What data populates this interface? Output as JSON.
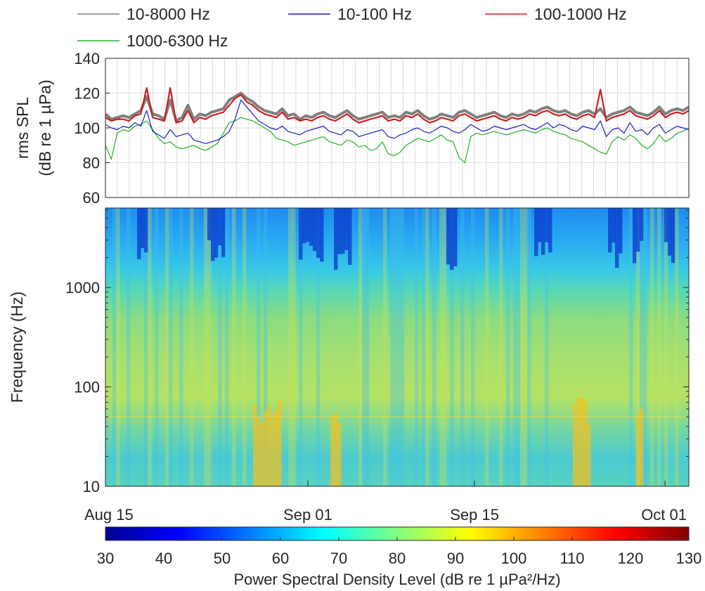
{
  "chart_data": [
    {
      "type": "line",
      "x_start": "Aug 15",
      "x_end": "Oct 03",
      "ylabel_line1": "rms SPL",
      "ylabel_line2": "(dB re 1 µPa)",
      "ylim": [
        60,
        140
      ],
      "yticks": [
        "60",
        "80",
        "100",
        "120",
        "140"
      ],
      "grid": true,
      "legend_position": "top",
      "series": [
        {
          "name": "10-8000 Hz",
          "color": "#808080",
          "values": [
            108,
            105,
            106,
            107,
            106,
            108,
            110,
            118,
            108,
            107,
            105,
            116,
            104,
            106,
            113,
            105,
            108,
            107,
            109,
            110,
            111,
            116,
            118,
            120,
            117,
            115,
            112,
            110,
            109,
            108,
            111,
            107,
            108,
            105,
            107,
            106,
            108,
            109,
            107,
            106,
            108,
            110,
            107,
            105,
            106,
            107,
            108,
            109,
            106,
            107,
            106,
            109,
            108,
            110,
            107,
            105,
            106,
            108,
            107,
            106,
            109,
            110,
            108,
            106,
            107,
            108,
            109,
            107,
            106,
            108,
            107,
            108,
            110,
            109,
            111,
            112,
            110,
            109,
            110,
            108,
            107,
            109,
            110,
            108,
            111,
            106,
            108,
            109,
            110,
            112,
            109,
            108,
            107,
            109,
            112,
            108,
            110,
            111,
            110,
            112
          ]
        },
        {
          "name": "10-100 Hz",
          "color": "#1f1fbf",
          "values": [
            102,
            100,
            99,
            101,
            100,
            103,
            101,
            110,
            98,
            96,
            94,
            99,
            95,
            96,
            97,
            93,
            92,
            91,
            92,
            93,
            95,
            98,
            105,
            116,
            112,
            108,
            104,
            102,
            100,
            99,
            101,
            98,
            97,
            96,
            98,
            99,
            100,
            101,
            98,
            97,
            96,
            99,
            98,
            95,
            96,
            97,
            98,
            99,
            95,
            94,
            96,
            97,
            99,
            100,
            98,
            97,
            99,
            101,
            100,
            98,
            97,
            99,
            102,
            100,
            98,
            99,
            101,
            100,
            99,
            100,
            101,
            102,
            100,
            99,
            101,
            103,
            100,
            102,
            101,
            99,
            98,
            101,
            100,
            99,
            104,
            95,
            99,
            100,
            97,
            103,
            98,
            99,
            96,
            100,
            102,
            97,
            99,
            101,
            100,
            99
          ]
        },
        {
          "name": "100-1000 Hz",
          "color": "#cc1f1f",
          "values": [
            106,
            104,
            105,
            105,
            104,
            107,
            108,
            123,
            106,
            105,
            104,
            123,
            103,
            104,
            110,
            103,
            106,
            105,
            107,
            108,
            109,
            113,
            117,
            119,
            115,
            113,
            110,
            108,
            107,
            106,
            109,
            105,
            106,
            104,
            105,
            104,
            106,
            107,
            105,
            104,
            106,
            108,
            105,
            103,
            104,
            105,
            106,
            107,
            104,
            105,
            104,
            107,
            106,
            108,
            105,
            103,
            104,
            106,
            105,
            104,
            107,
            108,
            106,
            104,
            105,
            106,
            107,
            105,
            104,
            106,
            105,
            106,
            108,
            107,
            109,
            110,
            108,
            107,
            108,
            106,
            105,
            107,
            108,
            106,
            122,
            104,
            106,
            107,
            108,
            110,
            107,
            106,
            105,
            107,
            110,
            106,
            108,
            109,
            108,
            110
          ]
        },
        {
          "name": "1000-6300 Hz",
          "color": "#22b022",
          "values": [
            90,
            82,
            97,
            99,
            98,
            101,
            102,
            104,
            99,
            94,
            91,
            92,
            89,
            88,
            89,
            90,
            88,
            87,
            89,
            91,
            97,
            103,
            104,
            106,
            105,
            104,
            102,
            100,
            98,
            94,
            93,
            92,
            90,
            91,
            92,
            93,
            94,
            95,
            92,
            91,
            90,
            93,
            92,
            89,
            90,
            87,
            88,
            92,
            85,
            84,
            86,
            90,
            92,
            94,
            93,
            92,
            94,
            96,
            93,
            92,
            83,
            80,
            95,
            97,
            96,
            97,
            98,
            97,
            96,
            97,
            98,
            99,
            98,
            97,
            99,
            100,
            98,
            97,
            96,
            94,
            93,
            92,
            90,
            88,
            86,
            85,
            92,
            95,
            93,
            96,
            94,
            90,
            88,
            91,
            96,
            92,
            94,
            97,
            98,
            100
          ]
        }
      ]
    },
    {
      "type": "heatmap",
      "ylabel": "Frequency (Hz)",
      "yscale": "log",
      "ylim": [
        10,
        6300
      ],
      "yticks": [
        "10",
        "100",
        "1000"
      ],
      "xticks": [
        "Aug 15",
        "Sep 01",
        "Sep 15",
        "Oct 01"
      ],
      "colormap": "jet",
      "clim": [
        30,
        130
      ],
      "colorbar_ticks": [
        "30",
        "40",
        "50",
        "60",
        "70",
        "80",
        "90",
        "100",
        "110",
        "120",
        "130"
      ],
      "colorbar_label": "Power Spectral Density Level (dB re 1 µPa²/Hz)"
    }
  ]
}
